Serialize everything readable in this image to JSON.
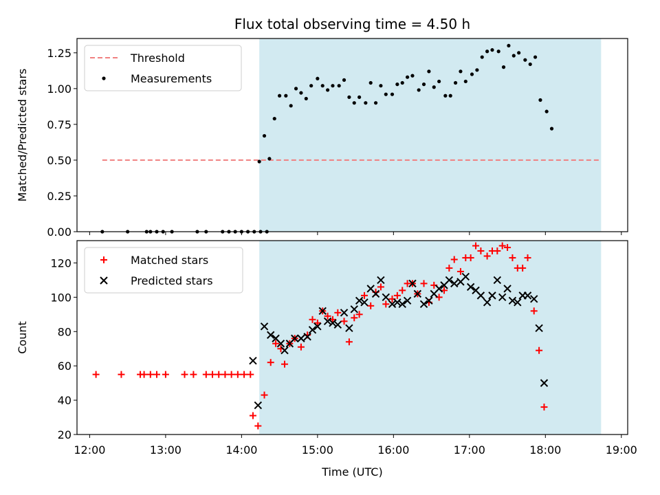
{
  "chart_data": [
    {
      "type": "scatter",
      "title": "Flux total observing time = 4.50 h",
      "xlabel": "",
      "ylabel": "Matched/Predicted stars",
      "ylim": [
        0,
        1.35
      ],
      "xlim": [
        "11:50",
        "19:05"
      ],
      "yticks": [
        "0.00",
        "0.25",
        "0.50",
        "0.75",
        "1.00",
        "1.25"
      ],
      "shaded_interval": [
        "14:14",
        "18:44"
      ],
      "shade_color": "#add8e6",
      "threshold": {
        "value": 0.5,
        "x_start": "12:10",
        "x_end": "18:44",
        "color": "#f08080"
      },
      "legend": {
        "placement": "top-left",
        "entries": [
          "Threshold",
          "Measurements"
        ]
      },
      "series": [
        {
          "name": "Measurements",
          "marker": "dot",
          "color": "#000000",
          "points": [
            [
              "12:10",
              0
            ],
            [
              "12:30",
              0
            ],
            [
              "12:45",
              0
            ],
            [
              "12:48",
              0
            ],
            [
              "12:53",
              0
            ],
            [
              "12:58",
              0
            ],
            [
              "13:05",
              0
            ],
            [
              "13:25",
              0
            ],
            [
              "13:32",
              0
            ],
            [
              "13:45",
              0
            ],
            [
              "13:50",
              0
            ],
            [
              "13:55",
              0
            ],
            [
              "14:00",
              0
            ],
            [
              "14:05",
              0
            ],
            [
              "14:10",
              0
            ],
            [
              "14:15",
              0
            ],
            [
              "14:20",
              0
            ],
            [
              "14:14",
              0.49
            ],
            [
              "14:18",
              0.67
            ],
            [
              "14:22",
              0.51
            ],
            [
              "14:26",
              0.79
            ],
            [
              "14:30",
              0.95
            ],
            [
              "14:35",
              0.95
            ],
            [
              "14:39",
              0.88
            ],
            [
              "14:43",
              1.0
            ],
            [
              "14:47",
              0.97
            ],
            [
              "14:51",
              0.93
            ],
            [
              "14:55",
              1.02
            ],
            [
              "15:00",
              1.07
            ],
            [
              "15:04",
              1.02
            ],
            [
              "15:08",
              0.99
            ],
            [
              "15:12",
              1.02
            ],
            [
              "15:17",
              1.02
            ],
            [
              "15:21",
              1.06
            ],
            [
              "15:25",
              0.94
            ],
            [
              "15:29",
              0.9
            ],
            [
              "15:33",
              0.94
            ],
            [
              "15:38",
              0.9
            ],
            [
              "15:42",
              1.04
            ],
            [
              "15:46",
              0.9
            ],
            [
              "15:50",
              1.02
            ],
            [
              "15:54",
              0.96
            ],
            [
              "15:59",
              0.96
            ],
            [
              "16:03",
              1.03
            ],
            [
              "16:07",
              1.04
            ],
            [
              "16:11",
              1.08
            ],
            [
              "16:15",
              1.09
            ],
            [
              "16:20",
              0.99
            ],
            [
              "16:24",
              1.03
            ],
            [
              "16:28",
              1.12
            ],
            [
              "16:32",
              1.01
            ],
            [
              "16:36",
              1.05
            ],
            [
              "16:41",
              0.95
            ],
            [
              "16:45",
              0.95
            ],
            [
              "16:49",
              1.04
            ],
            [
              "16:53",
              1.12
            ],
            [
              "16:57",
              1.05
            ],
            [
              "17:02",
              1.1
            ],
            [
              "17:06",
              1.13
            ],
            [
              "17:10",
              1.22
            ],
            [
              "17:14",
              1.26
            ],
            [
              "17:18",
              1.27
            ],
            [
              "17:23",
              1.26
            ],
            [
              "17:27",
              1.15
            ],
            [
              "17:31",
              1.3
            ],
            [
              "17:35",
              1.23
            ],
            [
              "17:39",
              1.25
            ],
            [
              "17:44",
              1.2
            ],
            [
              "17:48",
              1.17
            ],
            [
              "17:52",
              1.22
            ],
            [
              "17:56",
              0.92
            ],
            [
              "18:01",
              0.84
            ],
            [
              "18:05",
              0.72
            ]
          ]
        }
      ],
      "grid": false
    },
    {
      "type": "scatter",
      "title": "",
      "xlabel": "Time (UTC)",
      "ylabel": "Count",
      "ylim": [
        20,
        133
      ],
      "xlim": [
        "11:50",
        "19:05"
      ],
      "xticks": [
        "12:00",
        "13:00",
        "14:00",
        "15:00",
        "16:00",
        "17:00",
        "18:00",
        "19:00"
      ],
      "yticks": [
        "20",
        "40",
        "60",
        "80",
        "100",
        "120"
      ],
      "shaded_interval": [
        "14:14",
        "18:44"
      ],
      "shade_color": "#add8e6",
      "legend": {
        "placement": "top-left",
        "entries": [
          "Matched stars",
          "Predicted stars"
        ]
      },
      "series": [
        {
          "name": "Matched stars",
          "marker": "plus",
          "color": "#ff0000",
          "points": [
            [
              "12:05",
              55
            ],
            [
              "12:25",
              55
            ],
            [
              "12:40",
              55
            ],
            [
              "12:43",
              55
            ],
            [
              "12:48",
              55
            ],
            [
              "12:53",
              55
            ],
            [
              "13:00",
              55
            ],
            [
              "13:15",
              55
            ],
            [
              "13:22",
              55
            ],
            [
              "13:32",
              55
            ],
            [
              "13:37",
              55
            ],
            [
              "13:42",
              55
            ],
            [
              "13:47",
              55
            ],
            [
              "13:52",
              55
            ],
            [
              "13:57",
              55
            ],
            [
              "14:02",
              55
            ],
            [
              "14:07",
              55
            ],
            [
              "14:09",
              31
            ],
            [
              "14:13",
              25
            ],
            [
              "14:18",
              43
            ],
            [
              "14:23",
              62
            ],
            [
              "14:27",
              73
            ],
            [
              "14:31",
              70
            ],
            [
              "14:34",
              61
            ],
            [
              "14:38",
              73
            ],
            [
              "14:42",
              76
            ],
            [
              "14:47",
              71
            ],
            [
              "14:52",
              78
            ],
            [
              "14:56",
              87
            ],
            [
              "15:00",
              85
            ],
            [
              "15:04",
              92
            ],
            [
              "15:08",
              89
            ],
            [
              "15:12",
              87
            ],
            [
              "15:16",
              91
            ],
            [
              "15:21",
              86
            ],
            [
              "15:25",
              74
            ],
            [
              "15:29",
              88
            ],
            [
              "15:33",
              90
            ],
            [
              "15:37",
              101
            ],
            [
              "15:42",
              95
            ],
            [
              "15:46",
              103
            ],
            [
              "15:50",
              106
            ],
            [
              "15:54",
              96
            ],
            [
              "15:59",
              99
            ],
            [
              "16:03",
              101
            ],
            [
              "16:07",
              104
            ],
            [
              "16:11",
              108
            ],
            [
              "16:15",
              108
            ],
            [
              "16:19",
              102
            ],
            [
              "16:24",
              108
            ],
            [
              "16:28",
              97
            ],
            [
              "16:32",
              107
            ],
            [
              "16:36",
              100
            ],
            [
              "16:40",
              104
            ],
            [
              "16:44",
              117
            ],
            [
              "16:48",
              122
            ],
            [
              "16:53",
              115
            ],
            [
              "16:57",
              123
            ],
            [
              "17:01",
              123
            ],
            [
              "17:05",
              130
            ],
            [
              "17:09",
              127
            ],
            [
              "17:14",
              124
            ],
            [
              "17:18",
              127
            ],
            [
              "17:22",
              127
            ],
            [
              "17:26",
              130
            ],
            [
              "17:30",
              129
            ],
            [
              "17:34",
              123
            ],
            [
              "17:38",
              117
            ],
            [
              "17:42",
              117
            ],
            [
              "17:46",
              123
            ],
            [
              "17:51",
              92
            ],
            [
              "17:55",
              69
            ],
            [
              "17:59",
              36
            ]
          ]
        },
        {
          "name": "Predicted stars",
          "marker": "x",
          "color": "#000000",
          "points": [
            [
              "14:09",
              63
            ],
            [
              "14:13",
              37
            ],
            [
              "14:18",
              83
            ],
            [
              "14:23",
              78
            ],
            [
              "14:27",
              76
            ],
            [
              "14:31",
              73
            ],
            [
              "14:34",
              69
            ],
            [
              "14:38",
              73
            ],
            [
              "14:42",
              76
            ],
            [
              "14:47",
              76
            ],
            [
              "14:52",
              77
            ],
            [
              "14:56",
              81
            ],
            [
              "15:00",
              83
            ],
            [
              "15:04",
              92
            ],
            [
              "15:08",
              86
            ],
            [
              "15:12",
              85
            ],
            [
              "15:16",
              84
            ],
            [
              "15:21",
              91
            ],
            [
              "15:25",
              82
            ],
            [
              "15:29",
              93
            ],
            [
              "15:33",
              98
            ],
            [
              "15:37",
              97
            ],
            [
              "15:42",
              105
            ],
            [
              "15:46",
              102
            ],
            [
              "15:50",
              110
            ],
            [
              "15:54",
              100
            ],
            [
              "15:59",
              96
            ],
            [
              "16:03",
              97
            ],
            [
              "16:07",
              96
            ],
            [
              "16:11",
              98
            ],
            [
              "16:15",
              108
            ],
            [
              "16:19",
              102
            ],
            [
              "16:24",
              96
            ],
            [
              "16:28",
              98
            ],
            [
              "16:32",
              102
            ],
            [
              "16:36",
              105
            ],
            [
              "16:40",
              107
            ],
            [
              "16:44",
              110
            ],
            [
              "16:48",
              108
            ],
            [
              "16:53",
              109
            ],
            [
              "16:57",
              112
            ],
            [
              "17:01",
              106
            ],
            [
              "17:05",
              104
            ],
            [
              "17:09",
              101
            ],
            [
              "17:14",
              97
            ],
            [
              "17:18",
              101
            ],
            [
              "17:22",
              110
            ],
            [
              "17:26",
              100
            ],
            [
              "17:30",
              105
            ],
            [
              "17:34",
              98
            ],
            [
              "17:38",
              97
            ],
            [
              "17:42",
              101
            ],
            [
              "17:46",
              101
            ],
            [
              "17:51",
              99
            ],
            [
              "17:55",
              82
            ],
            [
              "17:59",
              50
            ]
          ]
        }
      ],
      "grid": false
    }
  ]
}
